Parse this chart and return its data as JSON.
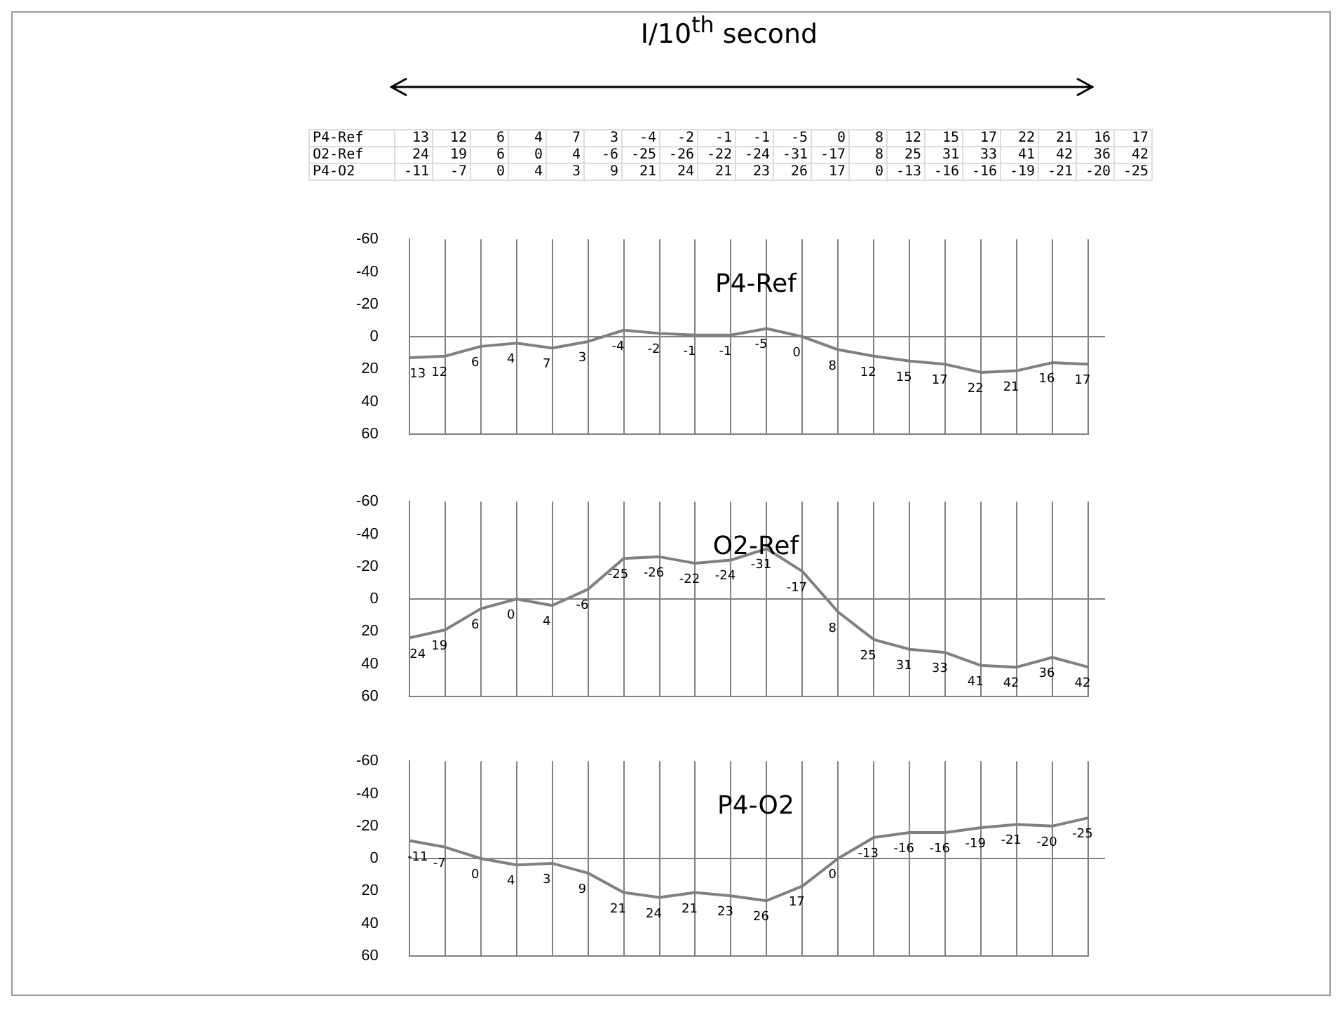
{
  "chart_data": [
    {
      "type": "other",
      "xlabel": "I/10$^{th}$  second",
      "y_categories": [
        "P4-Ref",
        "O2-Ref",
        "P4-O2"
      ],
      "cell_labels": [
        [
          "13",
          "12",
          "6",
          "4",
          "7",
          "3",
          "-4",
          "-2",
          "-1",
          "-1",
          "-5",
          "0",
          "8",
          "12",
          "15",
          "17",
          "22",
          "21",
          "16",
          "17"
        ],
        [
          "24",
          "19",
          "6",
          "0",
          "4",
          "-6",
          "-25",
          "-26",
          "-22",
          "-24",
          "-31",
          "-17",
          "8",
          "25",
          "31",
          "33",
          "41",
          "42",
          "36",
          "42"
        ],
        [
          "-11",
          "-7",
          "0",
          "4",
          "3",
          "9",
          "21",
          "24",
          "21",
          "23",
          "26",
          "17",
          "0",
          "-13",
          "-16",
          "-16",
          "-19",
          "-21",
          "-20",
          "-25"
        ]
      ]
    },
    {
      "type": "line",
      "title": "P4-Ref",
      "categories": [
        null,
        null,
        null,
        null,
        null,
        null,
        null,
        null,
        null,
        null,
        null,
        null,
        null,
        null,
        null,
        null,
        null,
        null,
        null,
        null
      ],
      "series": [
        {
          "color": "#808080",
          "values": [
            13,
            12,
            6,
            4,
            7,
            3,
            -4,
            -2,
            -1,
            -1,
            -5,
            0,
            8,
            12,
            15,
            17,
            22,
            21,
            16,
            17
          ]
        }
      ],
      "ylim": [
        60,
        -60
      ],
      "yticks": [
        -60,
        -40,
        -20,
        0,
        20,
        40,
        60
      ],
      "grid": "x",
      "tick_labels": "y",
      "data_labels": true,
      "ref_lines": [
        {
          "axis": "y",
          "value": 0
        }
      ]
    },
    {
      "type": "line",
      "title": "O2-Ref",
      "categories": [
        null,
        null,
        null,
        null,
        null,
        null,
        null,
        null,
        null,
        null,
        null,
        null,
        null,
        null,
        null,
        null,
        null,
        null,
        null,
        null
      ],
      "series": [
        {
          "color": "#808080",
          "values": [
            24,
            19,
            6,
            0,
            4,
            -6,
            -25,
            -26,
            -22,
            -24,
            -31,
            -17,
            8,
            25,
            31,
            33,
            41,
            42,
            36,
            42
          ]
        }
      ],
      "ylim": [
        60,
        -60
      ],
      "yticks": [
        -60,
        -40,
        -20,
        0,
        20,
        40,
        60
      ],
      "grid": "x",
      "tick_labels": "y",
      "data_labels": true,
      "ref_lines": [
        {
          "axis": "y",
          "value": 0
        }
      ]
    },
    {
      "type": "line",
      "title": "P4-O2",
      "categories": [
        null,
        null,
        null,
        null,
        null,
        null,
        null,
        null,
        null,
        null,
        null,
        null,
        null,
        null,
        null,
        null,
        null,
        null,
        null,
        null
      ],
      "series": [
        {
          "color": "#808080",
          "values": [
            -11,
            -7,
            0,
            4,
            3,
            9,
            21,
            24,
            21,
            23,
            26,
            17,
            0,
            -13,
            -16,
            -16,
            -19,
            -21,
            -20,
            -25
          ]
        }
      ],
      "ylim": [
        60,
        -60
      ],
      "yticks": [
        -60,
        -40,
        -20,
        0,
        20,
        40,
        60
      ],
      "grid": "x",
      "tick_labels": "y",
      "data_labels": true,
      "ref_lines": [
        {
          "axis": "y",
          "value": 0
        }
      ]
    }
  ]
}
